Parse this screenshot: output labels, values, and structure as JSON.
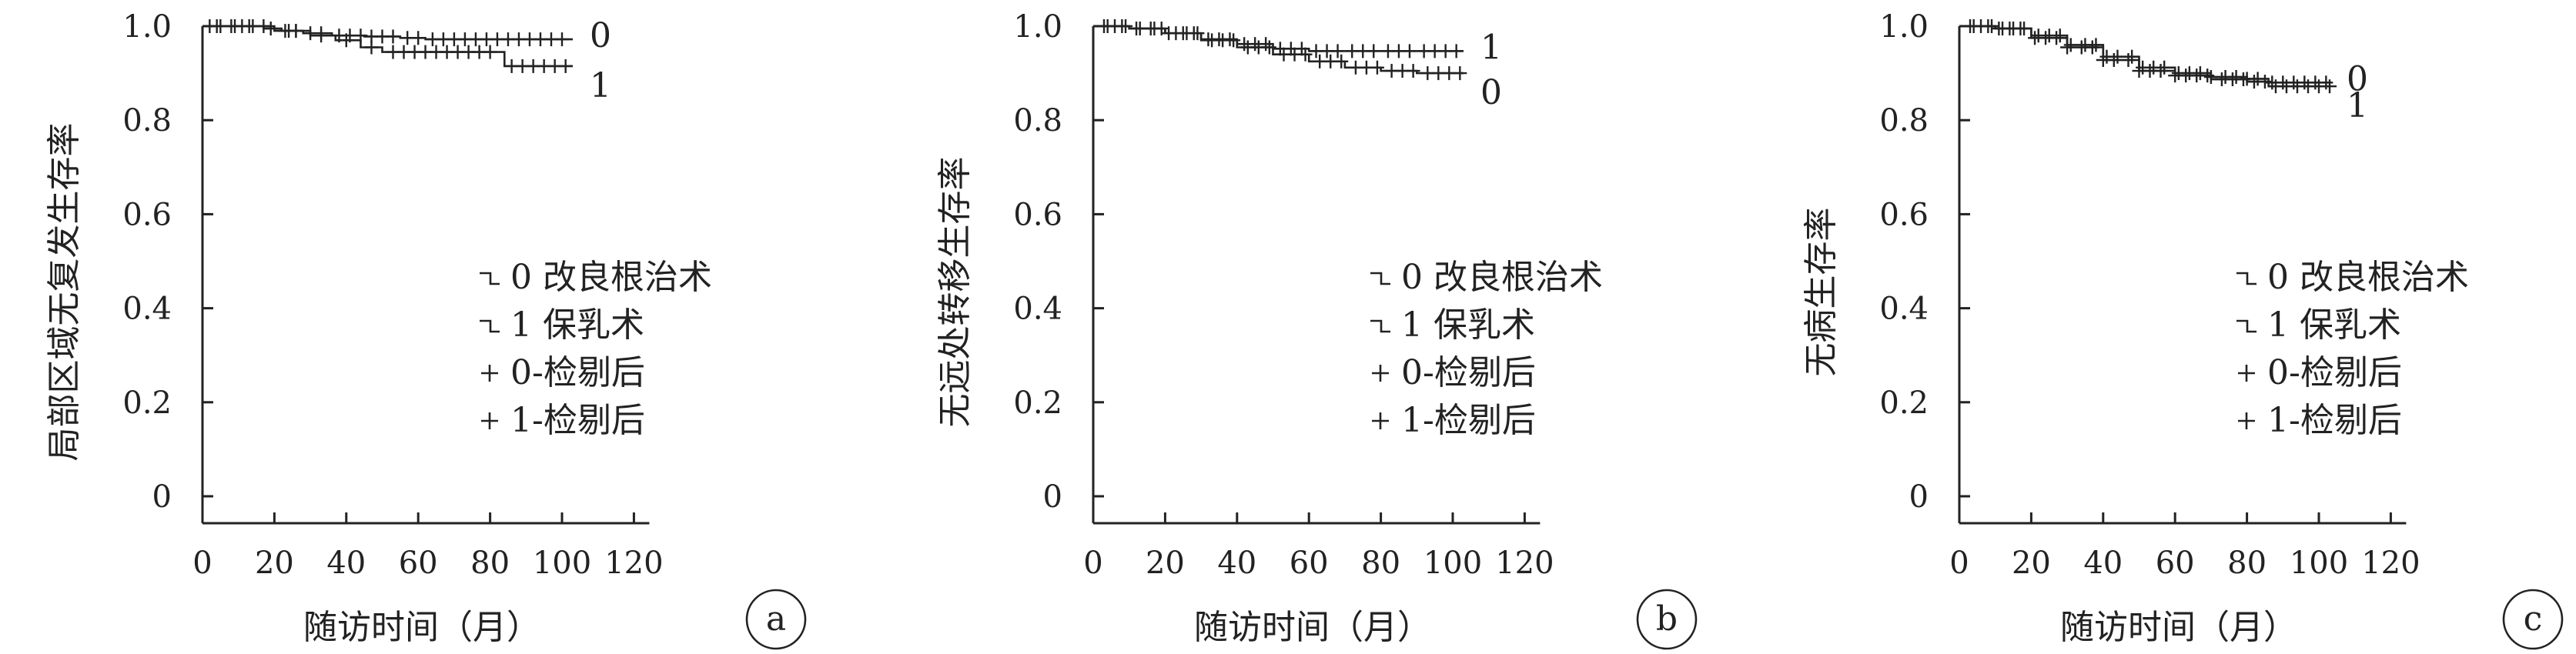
{
  "chart_data": [
    {
      "type": "line",
      "panel_label": "a",
      "xlabel": "随访时间（月）",
      "ylabel": "局部区域无复发生存率",
      "xlim": [
        0,
        120
      ],
      "ylim": [
        0,
        1.0
      ],
      "x_ticks": [
        "0",
        "20",
        "40",
        "60",
        "80",
        "100",
        "120"
      ],
      "y_ticks": [
        "0",
        "0.2",
        "0.4",
        "0.6",
        "0.8",
        "1.0"
      ],
      "legend": [
        "0 改良根治术",
        "1 保乳术",
        "0-检剔后",
        "1-检剔后"
      ],
      "series": [
        {
          "name": "0",
          "x": [
            0,
            17,
            22,
            28,
            36,
            45,
            55,
            62,
            103
          ],
          "values": [
            1.0,
            0.995,
            0.99,
            0.985,
            0.98,
            0.978,
            0.975,
            0.972,
            0.972
          ],
          "censored_x": [
            2,
            5,
            8,
            11,
            14,
            19,
            24,
            26,
            30,
            33,
            38,
            41,
            44,
            47,
            50,
            53,
            57,
            60,
            64,
            67,
            70,
            73,
            76,
            79,
            82,
            85,
            88,
            91,
            94,
            97,
            100
          ]
        },
        {
          "name": "1",
          "x": [
            0,
            20,
            30,
            37,
            44,
            50,
            84,
            103
          ],
          "values": [
            1.0,
            0.99,
            0.98,
            0.97,
            0.955,
            0.945,
            0.915,
            0.915
          ],
          "censored_x": [
            4,
            9,
            13,
            17,
            23,
            26,
            33,
            40,
            47,
            53,
            56,
            59,
            62,
            65,
            68,
            71,
            74,
            77,
            80,
            86,
            89,
            92,
            95,
            98,
            101
          ]
        }
      ],
      "end_labels": [
        "0",
        "1"
      ]
    },
    {
      "type": "line",
      "panel_label": "b",
      "xlabel": "随访时间（月）",
      "ylabel": "无远处转移生存率",
      "xlim": [
        0,
        120
      ],
      "ylim": [
        0,
        1.0
      ],
      "x_ticks": [
        "0",
        "20",
        "40",
        "60",
        "80",
        "100",
        "120"
      ],
      "y_ticks": [
        "0",
        "0.2",
        "0.4",
        "0.6",
        "0.8",
        "1.0"
      ],
      "legend": [
        "0 改良根治术",
        "1 保乳术",
        "0-检剔后",
        "1-检剔后"
      ],
      "series": [
        {
          "name": "0",
          "x": [
            0,
            10,
            20,
            30,
            40,
            50,
            60,
            70,
            80,
            90,
            103
          ],
          "values": [
            1.0,
            0.995,
            0.985,
            0.97,
            0.955,
            0.94,
            0.925,
            0.912,
            0.905,
            0.9,
            0.9
          ],
          "censored_x": [
            3,
            6,
            9,
            13,
            16,
            19,
            23,
            26,
            29,
            33,
            36,
            39,
            43,
            46,
            49,
            53,
            56,
            59,
            63,
            66,
            69,
            73,
            76,
            79,
            83,
            86,
            89,
            93,
            96,
            99,
            102
          ]
        },
        {
          "name": "1",
          "x": [
            0,
            10,
            20,
            30,
            40,
            50,
            60,
            103
          ],
          "values": [
            1.0,
            0.995,
            0.985,
            0.972,
            0.962,
            0.952,
            0.947,
            0.947
          ],
          "censored_x": [
            4,
            8,
            12,
            17,
            21,
            25,
            28,
            32,
            35,
            38,
            42,
            45,
            48,
            52,
            55,
            58,
            62,
            65,
            68,
            72,
            75,
            78,
            82,
            85,
            88,
            92,
            95,
            98,
            101
          ]
        }
      ],
      "end_labels": [
        "1",
        "0"
      ]
    },
    {
      "type": "line",
      "panel_label": "c",
      "xlabel": "随访时间（月）",
      "ylabel": "无病生存率",
      "xlim": [
        0,
        120
      ],
      "ylim": [
        0,
        1.0
      ],
      "x_ticks": [
        "0",
        "20",
        "40",
        "60",
        "80",
        "100",
        "120"
      ],
      "y_ticks": [
        "0",
        "0.2",
        "0.4",
        "0.6",
        "0.8",
        "1.0"
      ],
      "legend": [
        "0 改良根治术",
        "1 保乳术",
        "0-检剔后",
        "1-检剔后"
      ],
      "series": [
        {
          "name": "0",
          "x": [
            0,
            10,
            20,
            30,
            40,
            50,
            60,
            70,
            80,
            86,
            103
          ],
          "values": [
            1.0,
            0.995,
            0.98,
            0.96,
            0.935,
            0.912,
            0.9,
            0.892,
            0.888,
            0.88,
            0.88
          ],
          "censored_x": [
            3,
            6,
            9,
            12,
            15,
            18,
            22,
            25,
            28,
            31,
            35,
            38,
            41,
            44,
            48,
            51,
            54,
            57,
            61,
            64,
            67,
            70,
            74,
            77,
            80,
            83,
            87,
            90,
            93,
            96,
            99,
            102
          ]
        },
        {
          "name": "1",
          "x": [
            0,
            10,
            20,
            30,
            40,
            50,
            60,
            70,
            80,
            86,
            103
          ],
          "values": [
            1.0,
            0.995,
            0.975,
            0.955,
            0.928,
            0.905,
            0.895,
            0.887,
            0.882,
            0.872,
            0.872
          ],
          "censored_x": [
            4,
            8,
            11,
            14,
            17,
            21,
            24,
            27,
            30,
            34,
            37,
            40,
            43,
            47,
            50,
            53,
            56,
            60,
            63,
            66,
            69,
            73,
            76,
            79,
            82,
            85,
            88,
            91,
            94,
            97,
            100,
            103
          ]
        }
      ],
      "end_labels": [
        "0",
        "1"
      ]
    }
  ]
}
